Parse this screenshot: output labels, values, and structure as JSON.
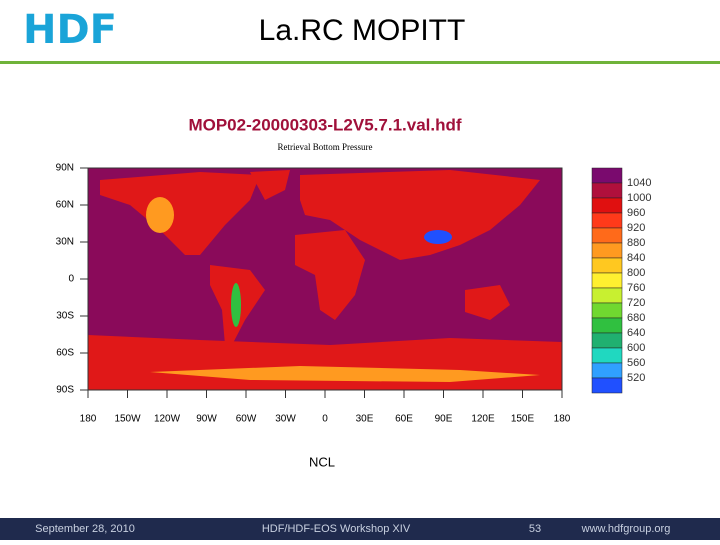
{
  "header": {
    "logo": "HDF",
    "title": "La.RC MOPITT"
  },
  "figure": {
    "title": "MOP02-20000303-L2V5.7.1.val.hdf",
    "subtitle": "Retrieval Bottom Pressure",
    "lat_labels": [
      "90N",
      "60N",
      "30N",
      "0",
      "30S",
      "60S",
      "90S"
    ],
    "lon_labels": [
      "180",
      "150W",
      "120W",
      "90W",
      "60W",
      "30W",
      "0",
      "30E",
      "60E",
      "90E",
      "120E",
      "150E",
      "180"
    ],
    "colorbar": {
      "levels": [
        "1040",
        "1000",
        "960",
        "920",
        "880",
        "840",
        "800",
        "760",
        "720",
        "680",
        "640",
        "600",
        "560",
        "520"
      ],
      "colors": [
        "#7a0a6e",
        "#b0103c",
        "#e01010",
        "#ff3a1a",
        "#ff6a1a",
        "#ff9a20",
        "#ffc820",
        "#fff030",
        "#c8f030",
        "#70d830",
        "#30c040",
        "#20b070",
        "#20d8c0",
        "#30a0ff",
        "#2050ff"
      ]
    },
    "caption": "NCL"
  },
  "footer": {
    "date": "September 28, 2010",
    "event": "HDF/HDF-EOS Workshop XIV",
    "page": "53",
    "url": "www.hdfgroup.org"
  }
}
